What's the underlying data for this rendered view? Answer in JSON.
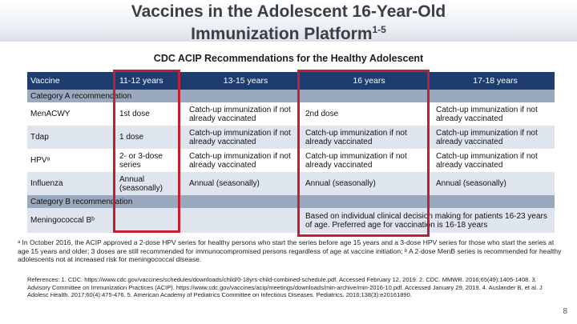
{
  "header": {
    "title_line1": "Vaccines in the Adolescent 16-Year-Old",
    "title_line2": "Immunization Platform",
    "title_sup": "1-5",
    "subtitle": "CDC ACIP Recommendations for the Healthy Adolescent"
  },
  "table": {
    "columns": [
      "Vaccine",
      "11-12 years",
      "13-15 years",
      "16 years",
      "17-18 years"
    ],
    "category_a": "Category A recommendation",
    "rows": [
      {
        "vaccine": "MenACWY",
        "c1": "1st dose",
        "c2": "Catch-up immunization if not already vaccinated",
        "c3": "2nd dose",
        "c4": "Catch-up immunization if not already vaccinated"
      },
      {
        "vaccine": "Tdap",
        "c1": "1 dose",
        "c2": "Catch-up immunization if not already vaccinated",
        "c3": "Catch-up immunization if not already vaccinated",
        "c4": "Catch-up immunization if not already vaccinated"
      },
      {
        "vaccine": "HPVᵃ",
        "c1": "2- or 3-dose series",
        "c2": "Catch-up immunization if not already vaccinated",
        "c3": "Catch-up immunization if not already vaccinated",
        "c4": "Catch-up immunization if not already vaccinated"
      },
      {
        "vaccine": "Influenza",
        "c1": "Annual (seasonally)",
        "c2": "Annual (seasonally)",
        "c3": "Annual (seasonally)",
        "c4": "Annual (seasonally)"
      }
    ],
    "category_b": "Category B recommendation",
    "row_b": {
      "vaccine": "Meningococcal Bᵇ",
      "note": "Based on individual clinical decision making for patients 16-23 years of age. Preferred age for vaccination is 16-18 years"
    }
  },
  "footnote": "ᵃ In October 2016, the ACIP approved a 2-dose HPV series for healthy persons who start the series before age 15 years and a 3-dose HPV series for those who start the series at age 15 years and older; 3 doses are still recommended for immunocompromised persons regardless of age at vaccine initiation; ᵇ A 2-dose MenB series is recommended for healthy adolescents not at increased risk for meningococcal disease.",
  "references": "References: 1. CDC. https://www.cdc.gov/vaccines/schedules/downloads/child/0-18yrs-child-combined-schedule.pdf. Accessed February 12, 2019. 2. CDC. MMWR. 2016;65(49):1405-1408. 3. Advisory Committee on Immunization Practices (ACIP). https://www.cdc.gov/vaccines/acip/meetings/downloads/min-archive/min-2016-10.pdf. Accessed January 29, 2019. 4. Auslander B, et al. J Adolesc Health. 2017;60(4):475-476. 5. American Academy of Pediatrics Committee on Infectious Diseases. Pediatrics. 2016;138(3):e20161890.",
  "page_number": "8",
  "colors": {
    "header_fill": "#1f3c6e",
    "category_fill": "#9aa9be",
    "stripe_fill": "#dfe5ee",
    "highlight_border": "#c0212e"
  }
}
